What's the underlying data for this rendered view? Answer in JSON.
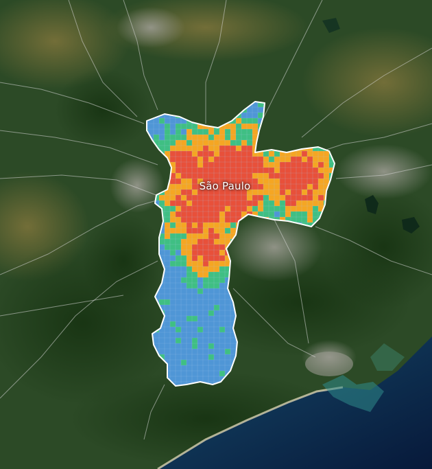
{
  "map": {
    "city_label": "São Paulo",
    "basemap": "satellite-imagery",
    "overlay": "grid-heatmap-choropleth",
    "colors": {
      "low": "#4f96d6",
      "low_mid": "#3fbf83",
      "mid": "#f5a623",
      "high": "#e8503a",
      "boundary": "#ffffff",
      "road": "#d8d8d8",
      "ocean": "#0b2a55",
      "forest": "#2c4d25",
      "urban": "#8d8f86"
    }
  }
}
